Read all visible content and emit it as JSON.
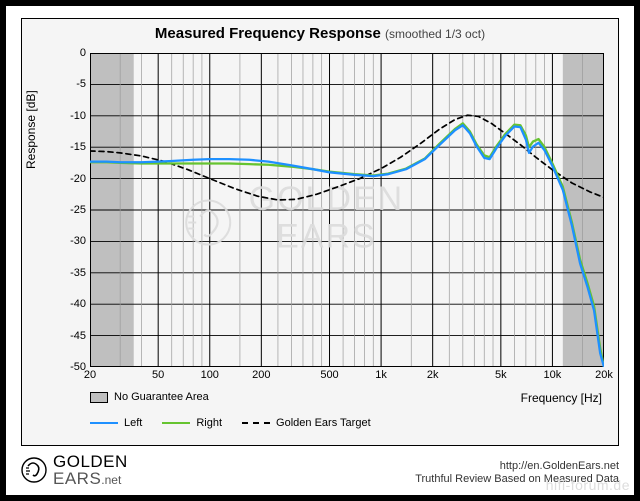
{
  "title": {
    "main": "Measured Frequency Response",
    "sub": "(smoothed 1/3 oct)"
  },
  "axes": {
    "ylabel": "Response [dB]",
    "xlabel": "Frequency [Hz]",
    "ylim": [
      -50,
      0
    ],
    "ystep": 5,
    "xlim": [
      20,
      20000
    ],
    "xscale": "log",
    "xticks": [
      {
        "v": 20,
        "label": "20"
      },
      {
        "v": 50,
        "label": "50"
      },
      {
        "v": 100,
        "label": "100"
      },
      {
        "v": 200,
        "label": "200"
      },
      {
        "v": 500,
        "label": "500"
      },
      {
        "v": 1000,
        "label": "1k"
      },
      {
        "v": 2000,
        "label": "2k"
      },
      {
        "v": 5000,
        "label": "5k"
      },
      {
        "v": 10000,
        "label": "10k"
      },
      {
        "v": 20000,
        "label": "20k"
      }
    ],
    "xminor": [
      30,
      40,
      60,
      70,
      80,
      90,
      150,
      250,
      300,
      350,
      400,
      450,
      600,
      700,
      800,
      900,
      1500,
      2500,
      3000,
      3500,
      4000,
      4500,
      6000,
      7000,
      8000,
      9000,
      15000
    ],
    "grid_major_color": "#000000",
    "grid_minor_color": "#9a9a9a",
    "no_guarantee_fill": "#bfbfbf",
    "no_guarantee_low": 36,
    "no_guarantee_high": 11500
  },
  "series": {
    "left": {
      "label": "Left",
      "color": "#1e90ff",
      "width": 2.3,
      "data": [
        [
          20,
          -17.3
        ],
        [
          25,
          -17.3
        ],
        [
          30,
          -17.4
        ],
        [
          40,
          -17.4
        ],
        [
          50,
          -17.3
        ],
        [
          60,
          -17.2
        ],
        [
          80,
          -17.0
        ],
        [
          100,
          -16.9
        ],
        [
          130,
          -16.9
        ],
        [
          170,
          -17.0
        ],
        [
          220,
          -17.3
        ],
        [
          300,
          -17.9
        ],
        [
          400,
          -18.5
        ],
        [
          500,
          -19.0
        ],
        [
          700,
          -19.4
        ],
        [
          900,
          -19.6
        ],
        [
          1100,
          -19.3
        ],
        [
          1400,
          -18.5
        ],
        [
          1800,
          -16.9
        ],
        [
          2200,
          -14.6
        ],
        [
          2700,
          -12.3
        ],
        [
          3000,
          -11.5
        ],
        [
          3300,
          -12.8
        ],
        [
          3600,
          -14.8
        ],
        [
          4000,
          -16.7
        ],
        [
          4300,
          -16.9
        ],
        [
          4700,
          -15.2
        ],
        [
          5300,
          -13.2
        ],
        [
          6000,
          -11.7
        ],
        [
          6500,
          -11.8
        ],
        [
          7000,
          -13.8
        ],
        [
          7300,
          -15.9
        ],
        [
          7700,
          -14.9
        ],
        [
          8300,
          -14.3
        ],
        [
          9000,
          -15.5
        ],
        [
          10000,
          -18.0
        ],
        [
          11500,
          -21.8
        ],
        [
          13000,
          -27.5
        ],
        [
          14500,
          -33.5
        ],
        [
          16000,
          -37.2
        ],
        [
          17500,
          -41.0
        ],
        [
          19000,
          -47.8
        ],
        [
          20000,
          -50.0
        ]
      ]
    },
    "right": {
      "label": "Right",
      "color": "#66c430",
      "width": 2.3,
      "data": [
        [
          20,
          -17.4
        ],
        [
          25,
          -17.4
        ],
        [
          30,
          -17.5
        ],
        [
          40,
          -17.6
        ],
        [
          50,
          -17.6
        ],
        [
          60,
          -17.6
        ],
        [
          80,
          -17.6
        ],
        [
          100,
          -17.6
        ],
        [
          130,
          -17.6
        ],
        [
          170,
          -17.7
        ],
        [
          220,
          -17.8
        ],
        [
          300,
          -18.1
        ],
        [
          400,
          -18.5
        ],
        [
          500,
          -18.9
        ],
        [
          700,
          -19.3
        ],
        [
          900,
          -19.5
        ],
        [
          1100,
          -19.2
        ],
        [
          1400,
          -18.4
        ],
        [
          1800,
          -16.8
        ],
        [
          2200,
          -14.4
        ],
        [
          2700,
          -12.1
        ],
        [
          3000,
          -11.2
        ],
        [
          3300,
          -12.5
        ],
        [
          3600,
          -14.5
        ],
        [
          4000,
          -16.3
        ],
        [
          4300,
          -16.6
        ],
        [
          4700,
          -14.9
        ],
        [
          5300,
          -12.9
        ],
        [
          6000,
          -11.4
        ],
        [
          6500,
          -11.5
        ],
        [
          7000,
          -13.1
        ],
        [
          7300,
          -15.0
        ],
        [
          7700,
          -14.1
        ],
        [
          8300,
          -13.7
        ],
        [
          9000,
          -15.0
        ],
        [
          10000,
          -17.6
        ],
        [
          11500,
          -21.3
        ],
        [
          13000,
          -27.0
        ],
        [
          14500,
          -32.9
        ],
        [
          16000,
          -36.6
        ],
        [
          17500,
          -40.3
        ],
        [
          19000,
          -47.0
        ],
        [
          20000,
          -50.0
        ]
      ]
    },
    "target": {
      "label": "Golden Ears Target",
      "color": "#000000",
      "width": 1.7,
      "dash": "5,4",
      "data": [
        [
          20,
          -15.6
        ],
        [
          25,
          -15.7
        ],
        [
          30,
          -15.9
        ],
        [
          40,
          -16.4
        ],
        [
          55,
          -17.3
        ],
        [
          75,
          -18.6
        ],
        [
          100,
          -20.0
        ],
        [
          140,
          -21.6
        ],
        [
          190,
          -22.8
        ],
        [
          250,
          -23.4
        ],
        [
          320,
          -23.3
        ],
        [
          420,
          -22.5
        ],
        [
          560,
          -21.3
        ],
        [
          750,
          -20.0
        ],
        [
          1000,
          -18.4
        ],
        [
          1300,
          -16.6
        ],
        [
          1700,
          -14.4
        ],
        [
          2200,
          -12.1
        ],
        [
          2700,
          -10.6
        ],
        [
          3200,
          -9.9
        ],
        [
          3700,
          -10.1
        ],
        [
          4400,
          -11.2
        ],
        [
          5300,
          -12.8
        ],
        [
          6500,
          -14.6
        ],
        [
          8000,
          -16.6
        ],
        [
          10000,
          -18.6
        ],
        [
          13000,
          -20.7
        ],
        [
          16500,
          -22.1
        ],
        [
          20000,
          -23.0
        ]
      ]
    }
  },
  "legend": {
    "no_guarantee": "No Guarantee Area"
  },
  "watermark": {
    "text_line1": "GOLDEN",
    "text_line2": "EARS",
    "color": "#dcdcdc"
  },
  "footer": {
    "brand_top": "GOLDEN",
    "brand_bottom": "EARS",
    "brand_suffix": ".net",
    "url": "http://en.GoldenEars.net",
    "tagline": "Truthful Review Based on Measured Data",
    "hifi": "hifi-forum.de"
  },
  "colors": {
    "page_bg": "#ffffff",
    "outer_border": "#000000",
    "chart_bg": "#f5f5f5",
    "text": "#000000"
  }
}
